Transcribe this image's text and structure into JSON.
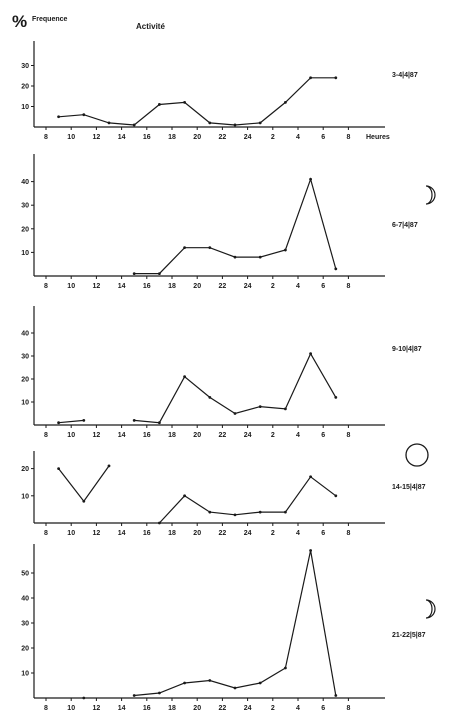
{
  "header": {
    "percent_symbol": "%",
    "frequency_label": "Frequence",
    "title": "Activité",
    "x_unit_label": "Heures"
  },
  "chart_data": [
    {
      "type": "line",
      "date_label": "3-4|4|87",
      "moon_phase": "none",
      "x_ticks": [
        "8",
        "10",
        "12",
        "14",
        "16",
        "18",
        "20",
        "22",
        "24",
        "2",
        "4",
        "6",
        "8"
      ],
      "y_ticks": [
        10,
        20,
        30
      ],
      "ylim": [
        0,
        40
      ],
      "show_hours_label": true,
      "segments": [
        [
          [
            9,
            5
          ],
          [
            11,
            6
          ],
          [
            13,
            2
          ],
          [
            15,
            1
          ],
          [
            17,
            11
          ],
          [
            19,
            12
          ],
          [
            21,
            2
          ],
          [
            23,
            1
          ],
          [
            25,
            2
          ],
          [
            27,
            12
          ],
          [
            29,
            24
          ],
          [
            31,
            24
          ]
        ]
      ]
    },
    {
      "type": "line",
      "date_label": "6-7|4|87",
      "moon_phase": "crescent",
      "x_ticks": [
        "8",
        "10",
        "12",
        "14",
        "16",
        "18",
        "20",
        "22",
        "24",
        "2",
        "4",
        "6",
        "8"
      ],
      "y_ticks": [
        10,
        20,
        30,
        40
      ],
      "ylim": [
        0,
        50
      ],
      "show_hours_label": false,
      "segments": [
        [
          [
            15,
            1
          ],
          [
            17,
            1
          ],
          [
            19,
            12
          ],
          [
            21,
            12
          ],
          [
            23,
            8
          ],
          [
            25,
            8
          ],
          [
            27,
            11
          ],
          [
            29,
            41
          ],
          [
            31,
            3
          ]
        ]
      ]
    },
    {
      "type": "line",
      "date_label": "9-10|4|87",
      "moon_phase": "none",
      "x_ticks": [
        "8",
        "10",
        "12",
        "14",
        "16",
        "18",
        "20",
        "22",
        "24",
        "2",
        "4",
        "6",
        "8"
      ],
      "y_ticks": [
        10,
        20,
        30,
        40
      ],
      "ylim": [
        0,
        50
      ],
      "show_hours_label": false,
      "segments": [
        [
          [
            9,
            1
          ],
          [
            11,
            2
          ]
        ],
        [
          [
            15,
            2
          ],
          [
            17,
            1
          ],
          [
            19,
            21
          ],
          [
            21,
            12
          ],
          [
            23,
            5
          ],
          [
            25,
            8
          ],
          [
            27,
            7
          ],
          [
            29,
            31
          ],
          [
            31,
            12
          ]
        ]
      ]
    },
    {
      "type": "line",
      "date_label": "14-15|4|87",
      "moon_phase": "full",
      "x_ticks": [
        "8",
        "10",
        "12",
        "14",
        "16",
        "18",
        "20",
        "22",
        "24",
        "2",
        "4",
        "6",
        "8"
      ],
      "y_ticks": [
        10,
        20
      ],
      "ylim": [
        0,
        25
      ],
      "show_hours_label": false,
      "segments": [
        [
          [
            9,
            20
          ],
          [
            11,
            8
          ],
          [
            13,
            21
          ]
        ],
        [
          [
            17,
            0
          ],
          [
            19,
            10
          ],
          [
            21,
            4
          ],
          [
            23,
            3
          ],
          [
            25,
            4
          ],
          [
            27,
            4
          ],
          [
            29,
            17
          ],
          [
            31,
            10
          ]
        ]
      ]
    },
    {
      "type": "line",
      "date_label": "21-22|5|87",
      "moon_phase": "crescent",
      "x_ticks": [
        "8",
        "10",
        "12",
        "14",
        "16",
        "18",
        "20",
        "22",
        "24",
        "2",
        "4",
        "6",
        "8"
      ],
      "y_ticks": [
        10,
        20,
        30,
        40,
        50
      ],
      "ylim": [
        0,
        60
      ],
      "show_hours_label": false,
      "segments": [
        [
          [
            11,
            0
          ]
        ],
        [
          [
            15,
            1
          ],
          [
            17,
            2
          ],
          [
            19,
            6
          ],
          [
            21,
            7
          ],
          [
            23,
            4
          ],
          [
            25,
            6
          ],
          [
            27,
            12
          ],
          [
            29,
            59
          ],
          [
            31,
            1
          ]
        ]
      ]
    }
  ]
}
